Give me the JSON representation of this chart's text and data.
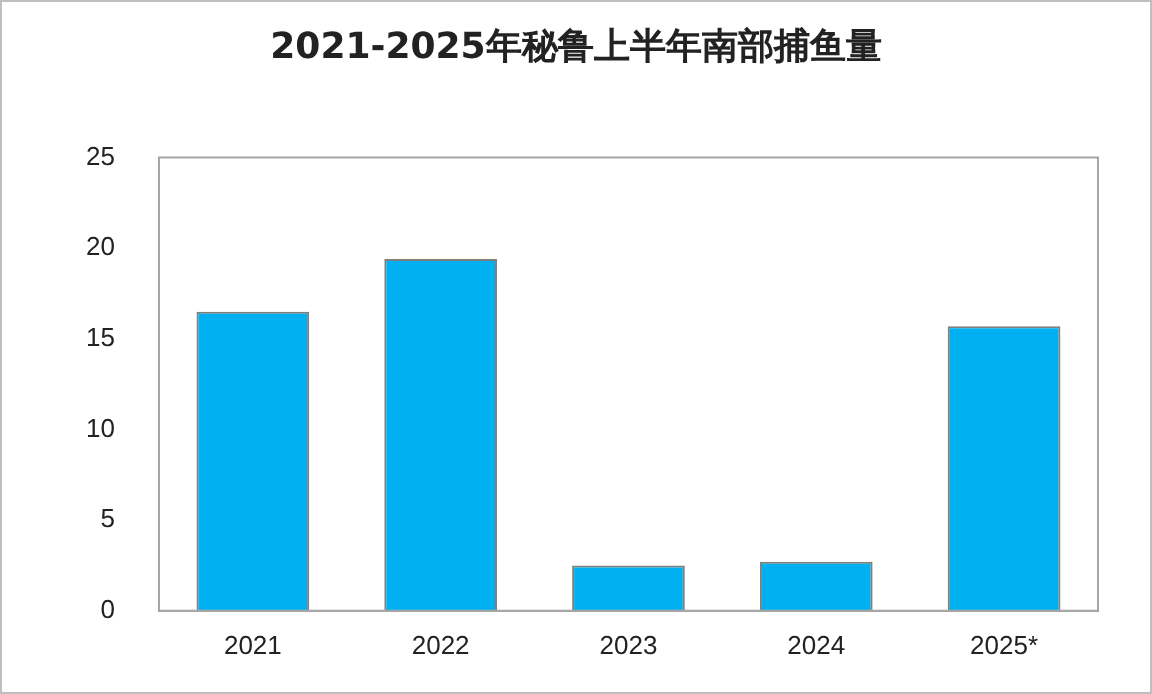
{
  "chart_data": {
    "type": "bar",
    "title": "2021-2025年秘鲁上半年南部捕鱼量",
    "categories": [
      "2021",
      "2022",
      "2023",
      "2024",
      "2025*"
    ],
    "values": [
      16.5,
      19.4,
      2.5,
      2.7,
      15.7
    ],
    "color": "#00b0f0",
    "ylim": [
      0,
      25
    ],
    "yticks": [
      0,
      5,
      10,
      15,
      20,
      25
    ],
    "grid": false,
    "legend": false
  }
}
